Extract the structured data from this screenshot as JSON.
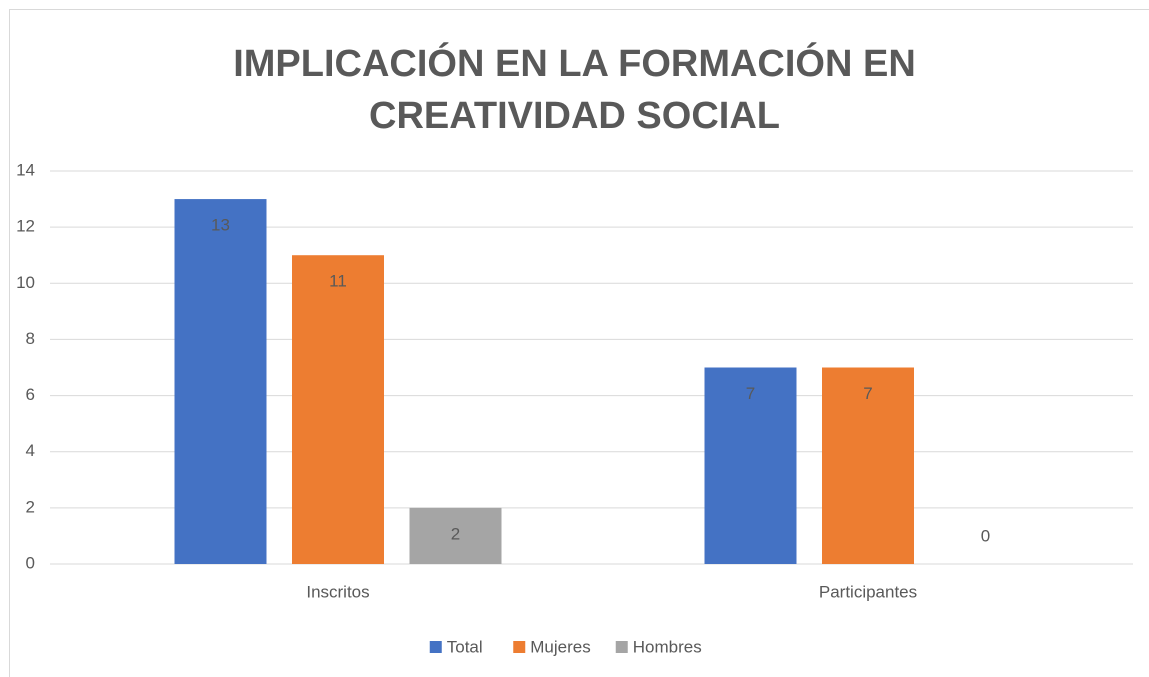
{
  "chart_data": {
    "type": "bar",
    "title": "IMPLICACIÓN EN LA FORMACIÓN EN CREATIVIDAD SOCIAL",
    "categories": [
      "Inscritos",
      "Participantes"
    ],
    "series": [
      {
        "name": "Total",
        "color": "#4472c4",
        "values": [
          13,
          7
        ]
      },
      {
        "name": "Mujeres",
        "color": "#ed7d31",
        "values": [
          11,
          7
        ]
      },
      {
        "name": "Hombres",
        "color": "#a5a5a5",
        "values": [
          2,
          0
        ]
      }
    ],
    "ylim": [
      0,
      14
    ],
    "yticks": [
      0,
      2,
      4,
      6,
      8,
      10,
      12,
      14
    ],
    "grid": true,
    "legend": "bottom"
  }
}
